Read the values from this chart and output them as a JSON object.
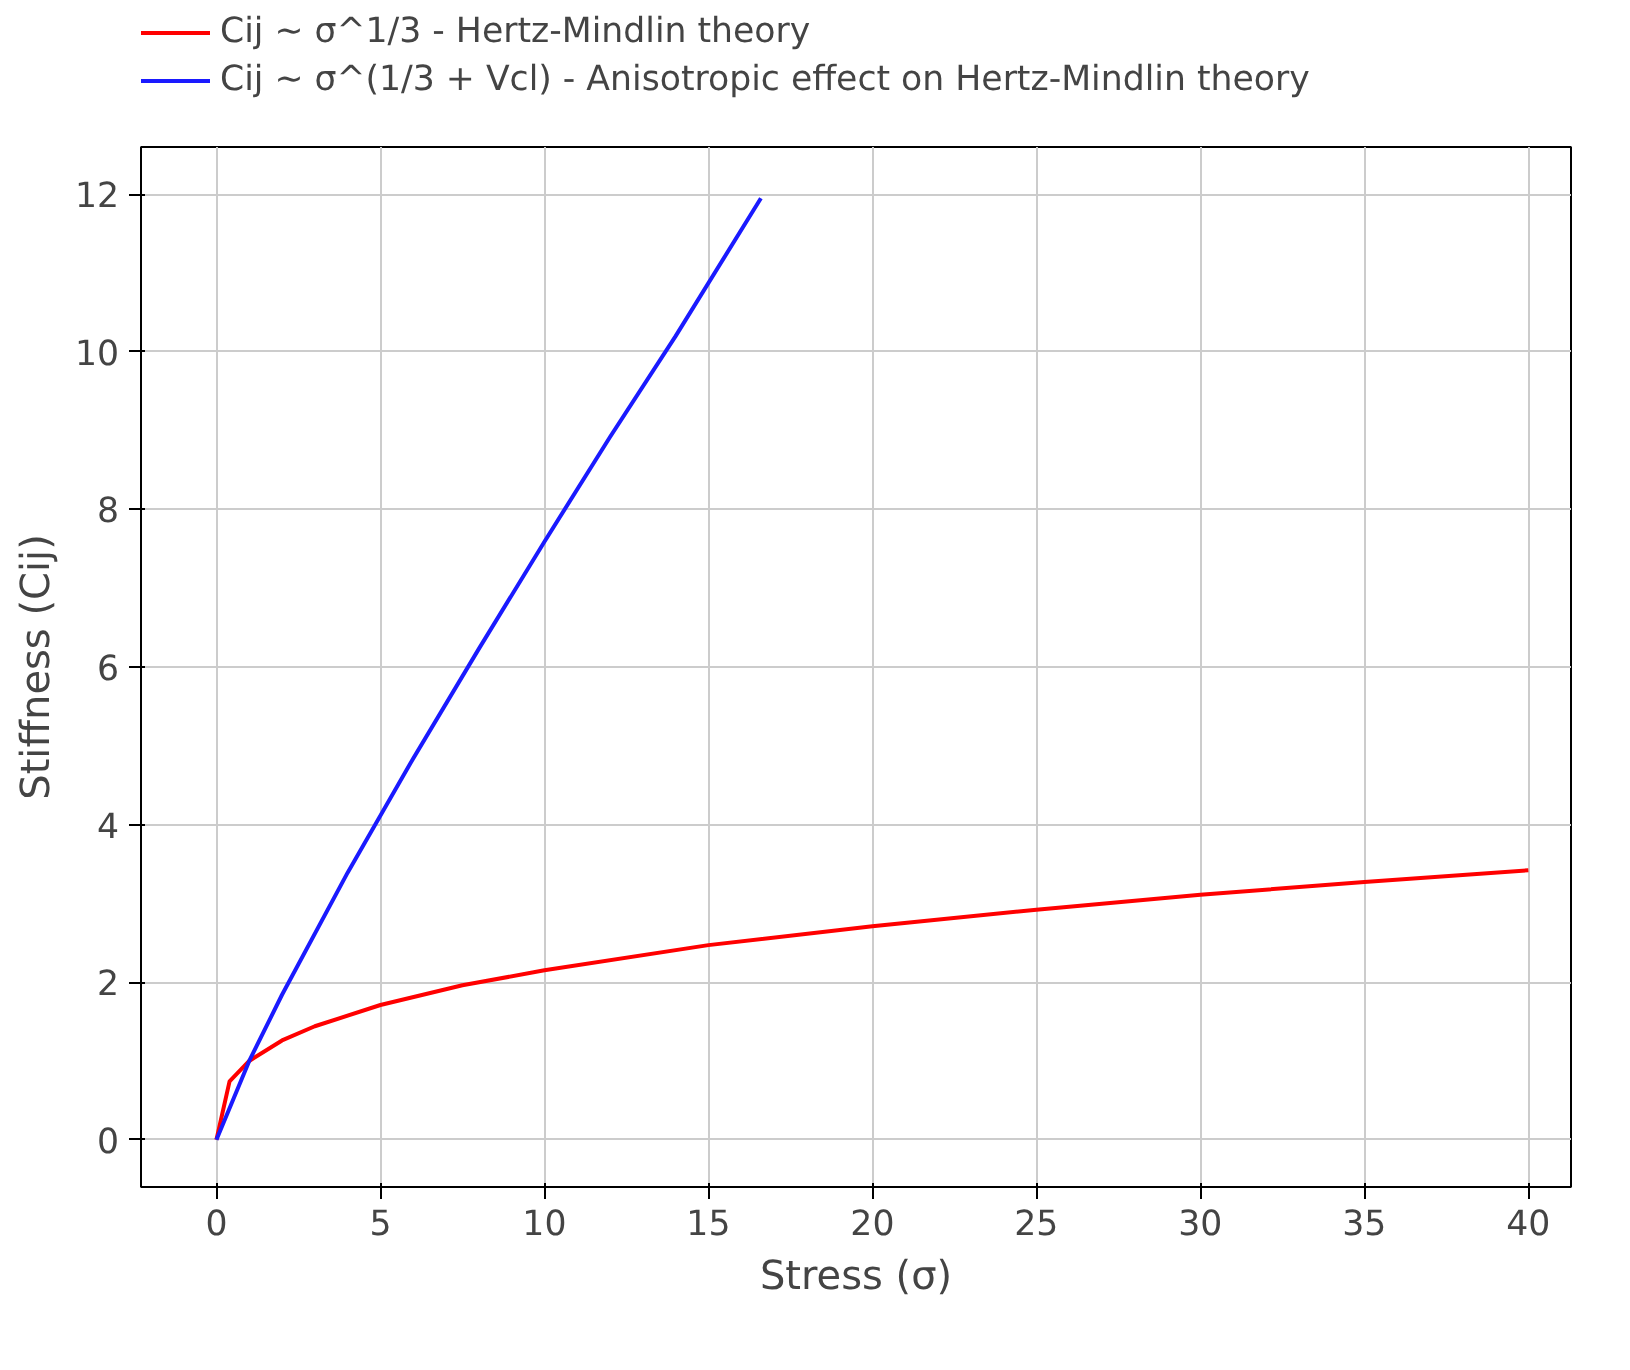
{
  "chart_data": {
    "type": "line",
    "xlabel": "Stress (σ)",
    "ylabel": "Stiffness (Cij)",
    "series": [
      {
        "name": "Cij ~ σ^1/3 - Hertz-Mindlin theory",
        "color": "#ff0000",
        "x": [
          0,
          0.4,
          1,
          2,
          3,
          5,
          7.5,
          10,
          15,
          20,
          25,
          30,
          35,
          40
        ],
        "values": [
          0,
          0.74,
          1.0,
          1.26,
          1.44,
          1.71,
          1.96,
          2.15,
          2.47,
          2.71,
          2.92,
          3.11,
          3.27,
          3.42
        ]
      },
      {
        "name": "Cij ~ σ^(1/3 + Vcl) - Anisotropic effect on Hertz-Mindlin theory",
        "color": "#1a1aff",
        "x": [
          0,
          1,
          2,
          4,
          6,
          8,
          10,
          12,
          14,
          16.6
        ],
        "values": [
          0,
          1.0,
          1.84,
          3.39,
          4.84,
          6.23,
          7.59,
          8.92,
          10.2,
          11.95
        ]
      }
    ],
    "xlim": [
      -2.3,
      41.3
    ],
    "ylim": [
      -0.6,
      12.6
    ],
    "xticks": [
      0,
      5,
      10,
      15,
      20,
      25,
      30,
      35,
      40
    ],
    "yticks": [
      0,
      2,
      4,
      6,
      8,
      10,
      12
    ],
    "grid": true,
    "legend": "top left",
    "line_style": "solid",
    "marker": "none"
  }
}
